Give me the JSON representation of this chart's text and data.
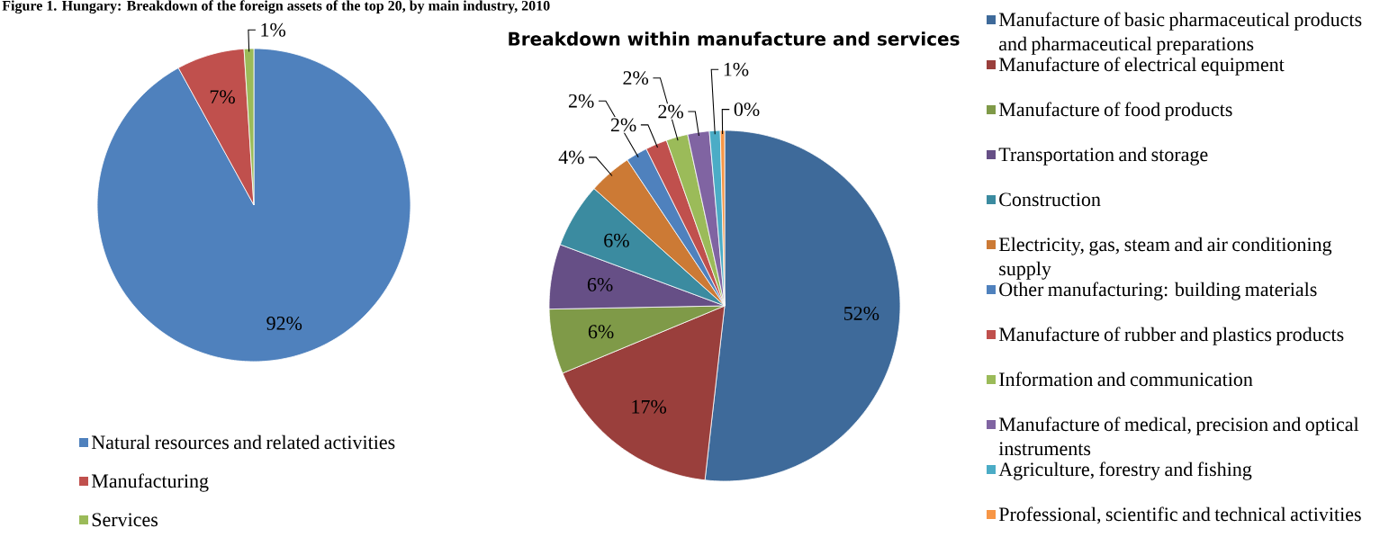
{
  "chart_data": [
    {
      "type": "pie",
      "title": "Figure 1. Hungary: Breakdown of the foreign assets of the top 20, by main industry, 2010",
      "categories": [
        "Natural resources and related activities",
        "Manufacturing",
        "Services"
      ],
      "values": [
        92,
        7,
        1
      ],
      "colors": [
        "#4f81bd",
        "#c0504d",
        "#9bbb59"
      ],
      "value_labels": [
        "92%",
        "7%",
        "1%"
      ],
      "legend": "bottom"
    },
    {
      "type": "pie",
      "title": "Breakdown within manufacture and services",
      "categories": [
        "Manufacture of basic pharmaceutical products and pharmaceutical preparations",
        "Manufacture of electrical equipment",
        "Manufacture of food products",
        "Transportation and storage",
        "Construction",
        "Electricity, gas, steam and air conditioning supply",
        "Other manufacturing: building materials",
        "Manufacture of rubber and plastics products",
        "Information and communication",
        "Manufacture of medical, precision and optical instruments",
        "Agriculture, forestry and fishing",
        "Professional, scientific and technical activities"
      ],
      "values": [
        52,
        17,
        6,
        6,
        6,
        4,
        2,
        2,
        2,
        2,
        1,
        0.4
      ],
      "colors": [
        "#3e6a9a",
        "#9a3f3c",
        "#7f9a48",
        "#664f86",
        "#3b8ba0",
        "#cc7a35",
        "#4f81bd",
        "#c0504d",
        "#9bbb59",
        "#8064a2",
        "#4bacc6",
        "#f79646"
      ],
      "value_labels": [
        "52%",
        "17%",
        "6%",
        "6%",
        "6%",
        "4%",
        "2%",
        "2%",
        "2%",
        "2%",
        "1%",
        "0%"
      ],
      "legend": "right"
    }
  ]
}
